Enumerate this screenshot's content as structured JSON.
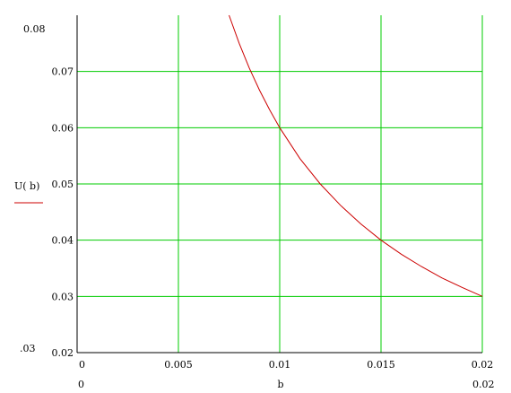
{
  "chart_data": {
    "type": "line",
    "title": "",
    "xlabel": "b",
    "ylabel": "U( b)",
    "xlim": [
      0,
      0.02
    ],
    "ylim": [
      0.02,
      0.08
    ],
    "x_ticks": [
      "0",
      "0.005",
      "0.01",
      "0.015",
      "0.02"
    ],
    "y_ticks": [
      "0.02",
      "0.03",
      "0.04",
      "0.05",
      "0.06",
      "0.07",
      "0.08"
    ],
    "x_range_labels": {
      "min": "0",
      "max": "0.02"
    },
    "y_range_labels": {
      "min": ".03",
      "max": "0.08"
    },
    "grid": true,
    "colors": {
      "grid": "#00cc00",
      "series": "#cc0000",
      "axis": "#000000"
    },
    "series": [
      {
        "formula": "U(b) = 0.0006 / b",
        "x": [
          0.0075,
          0.008,
          0.0085,
          0.009,
          0.0095,
          0.01,
          0.011,
          0.012,
          0.013,
          0.014,
          0.015,
          0.016,
          0.017,
          0.018,
          0.019,
          0.02
        ],
        "values": [
          0.08,
          0.075,
          0.0706,
          0.0667,
          0.0632,
          0.06,
          0.0545,
          0.05,
          0.0462,
          0.0429,
          0.04,
          0.0375,
          0.0353,
          0.0333,
          0.0316,
          0.03
        ]
      }
    ]
  }
}
